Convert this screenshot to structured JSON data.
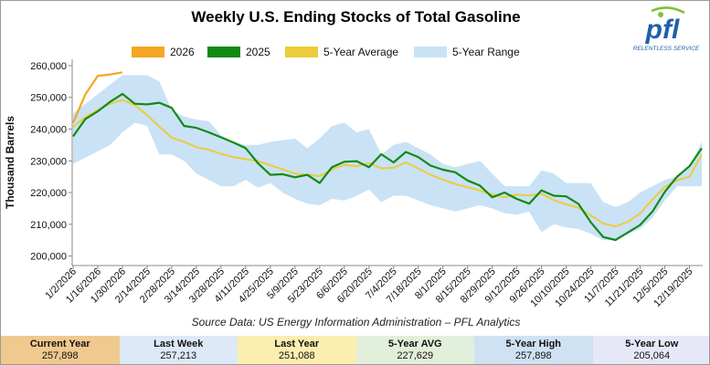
{
  "title": "Weekly U.S. Ending Stocks of Total Gasoline",
  "source": "Source Data: US Energy Information Administration – PFL Analytics",
  "logo": {
    "text": "pfl",
    "tagline": "RELENTLESS SERVICE",
    "color": "#1f5fa8"
  },
  "stats": [
    {
      "label": "Current Year",
      "value": "257,898",
      "color": "#f0c98e"
    },
    {
      "label": "Last Week",
      "value": "257,213",
      "color": "#dde9f7"
    },
    {
      "label": "Last Year",
      "value": "251,088",
      "color": "#fbeeb0"
    },
    {
      "label": "5-Year AVG",
      "value": "227,629",
      "color": "#e2efda"
    },
    {
      "label": "5-Year High",
      "value": "257,898",
      "color": "#cfe2f3"
    },
    {
      "label": "5-Year Low",
      "value": "205,064",
      "color": "#e6e8f8"
    }
  ],
  "chart_data": {
    "type": "line",
    "title": "Weekly U.S. Ending Stocks of Total Gasoline",
    "ylabel": "Thousand Barrels",
    "xlabel": "",
    "ylim": [
      197000,
      262000
    ],
    "yticks": [
      200000,
      210000,
      220000,
      230000,
      240000,
      250000,
      260000
    ],
    "ytick_labels": [
      "200,000",
      "210,000",
      "220,000",
      "230,000",
      "240,000",
      "250,000",
      "260,000"
    ],
    "x_tick_labels": [
      "1/2/2026",
      "1/16/2026",
      "1/30/2026",
      "2/14/2025",
      "2/28/2025",
      "3/14/2025",
      "3/28/2025",
      "4/11/2025",
      "4/25/2025",
      "5/9/2025",
      "5/23/2025",
      "6/6/2025",
      "6/20/2025",
      "7/4/2025",
      "7/18/2025",
      "8/1/2025",
      "8/15/2025",
      "8/29/2025",
      "9/12/2025",
      "9/26/2025",
      "10/10/2025",
      "10/24/2025",
      "11/7/2025",
      "11/21/2025",
      "12/5/2025",
      "12/19/2025"
    ],
    "legend_position": "top",
    "grid": false,
    "series": [
      {
        "name": "2026",
        "color": "#f5a623",
        "kind": "line",
        "values": [
          242000,
          251000,
          256800,
          257213,
          257898
        ]
      },
      {
        "name": "2025",
        "color": "#138a13",
        "kind": "line",
        "values": [
          237700,
          243200,
          245600,
          248600,
          251088,
          248000,
          247800,
          248300,
          246700,
          241000,
          240400,
          239000,
          237400,
          235800,
          234000,
          229200,
          225600,
          225800,
          224800,
          225600,
          223000,
          228000,
          229700,
          229900,
          228000,
          232100,
          229500,
          232800,
          231200,
          228500,
          227200,
          226400,
          223800,
          222200,
          218500,
          220000,
          218000,
          216500,
          220700,
          219000,
          218800,
          216400,
          210600,
          206000,
          205064,
          207400,
          209800,
          214000,
          220200,
          225000,
          228300,
          234000
        ]
      },
      {
        "name": "5-Year Average",
        "color": "#eccc3a",
        "kind": "line",
        "values": [
          240700,
          243800,
          246000,
          248000,
          249200,
          247600,
          244400,
          240800,
          237300,
          236000,
          234300,
          233500,
          232200,
          231200,
          230500,
          229900,
          228600,
          227300,
          226000,
          225600,
          225200,
          227300,
          228700,
          228300,
          229300,
          227600,
          227800,
          229500,
          227600,
          225600,
          224000,
          222700,
          221700,
          220600,
          219400,
          218500,
          219400,
          219000,
          219600,
          217600,
          216300,
          215200,
          212800,
          210300,
          209300,
          210800,
          213400,
          217800,
          221800,
          223900,
          225000,
          232000
        ]
      },
      {
        "name": "5-Year Range",
        "color": "#c9e2f5",
        "kind": "band",
        "high": [
          245000,
          248000,
          251000,
          254000,
          257000,
          257000,
          257000,
          255000,
          246000,
          244000,
          243000,
          242500,
          238000,
          236000,
          235000,
          235000,
          236000,
          236500,
          237000,
          234000,
          237000,
          241000,
          242000,
          239000,
          240000,
          232000,
          235000,
          236000,
          234000,
          232000,
          229000,
          228000,
          229000,
          230000,
          226000,
          222000,
          222000,
          222000,
          227000,
          226000,
          223000,
          223000,
          223000,
          217000,
          215500,
          217000,
          220000,
          222000,
          224000,
          225000,
          228000,
          236000
        ],
        "low": [
          229000,
          231000,
          233000,
          235000,
          239000,
          242000,
          241000,
          232000,
          232000,
          230000,
          226000,
          224000,
          222000,
          222000,
          224000,
          221500,
          223000,
          220000,
          218000,
          216500,
          216000,
          218000,
          217500,
          219000,
          221000,
          217000,
          219000,
          219000,
          217500,
          216000,
          215000,
          214000,
          215000,
          216000,
          215000,
          213500,
          213000,
          214000,
          207500,
          210000,
          209000,
          208500,
          207000,
          205000,
          205064,
          207000,
          208500,
          212000,
          217500,
          222000,
          222000,
          222000
        ]
      }
    ]
  }
}
